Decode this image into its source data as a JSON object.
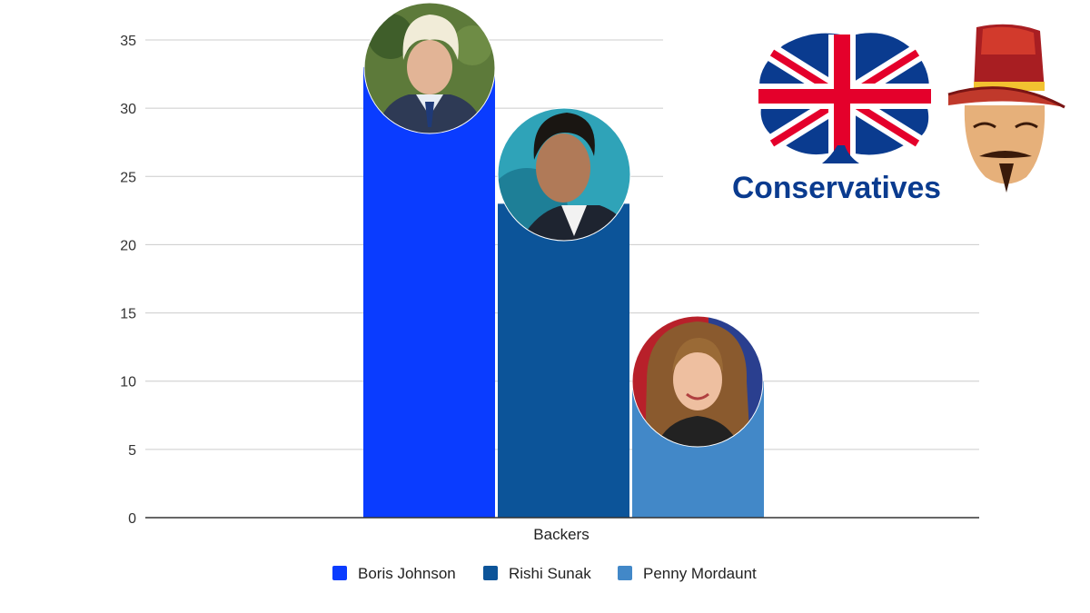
{
  "chart_data": {
    "type": "bar",
    "title": "",
    "xlabel": "Backers",
    "ylabel": "",
    "categories": [
      "Backers"
    ],
    "series": [
      {
        "name": "Boris Johnson",
        "values": [
          33
        ],
        "color": "#0a3cff"
      },
      {
        "name": "Rishi Sunak",
        "values": [
          23
        ],
        "color": "#0c5499"
      },
      {
        "name": "Penny Mordaunt",
        "values": [
          10
        ],
        "color": "#4288c8"
      }
    ],
    "ylim": [
      0,
      35
    ],
    "yticks": [
      0,
      5,
      10,
      15,
      20,
      25,
      30,
      35
    ],
    "grid": true,
    "legend_position": "bottom"
  },
  "logo": {
    "text": "Conservatives",
    "colors": {
      "red": "#e4002b",
      "blue": "#0a3b8f",
      "white": "#ffffff"
    }
  },
  "mascot": {
    "icon": "guy-fawkes-mask-icon",
    "colors": {
      "hat": "#c0392b",
      "face": "#e6b07a"
    }
  },
  "portraits": [
    {
      "icon": "boris-johnson-portrait-icon",
      "series": "Boris Johnson"
    },
    {
      "icon": "rishi-sunak-portrait-icon",
      "series": "Rishi Sunak"
    },
    {
      "icon": "penny-mordaunt-portrait-icon",
      "series": "Penny Mordaunt"
    }
  ]
}
